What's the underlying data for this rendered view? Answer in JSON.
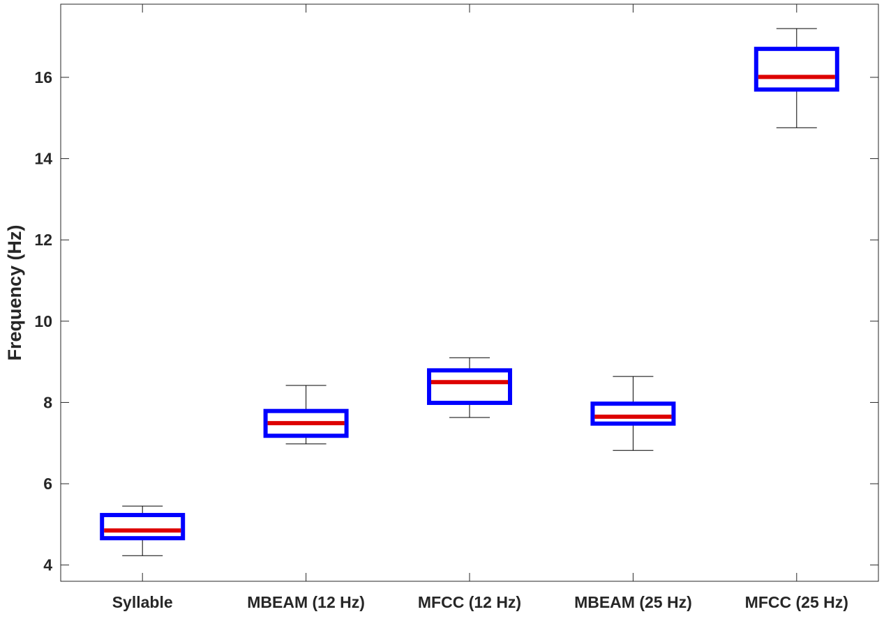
{
  "chart_data": {
    "type": "box",
    "title": "",
    "xlabel": "",
    "ylabel": "Frequency (Hz)",
    "ylim": [
      3.6,
      17.8
    ],
    "yticks": [
      4,
      6,
      8,
      10,
      12,
      14,
      16
    ],
    "grid": false,
    "categories": [
      "Syllable",
      "MBEAM (12 Hz)",
      "MFCC (12 Hz)",
      "MBEAM (25 Hz)",
      "MFCC (25 Hz)"
    ],
    "boxes": [
      {
        "category": "Syllable",
        "whisker_low": 4.23,
        "q1": 4.66,
        "median": 4.85,
        "q3": 5.23,
        "whisker_high": 5.45
      },
      {
        "category": "MBEAM (12 Hz)",
        "whisker_low": 6.98,
        "q1": 7.18,
        "median": 7.49,
        "q3": 7.79,
        "whisker_high": 8.42
      },
      {
        "category": "MFCC (12 Hz)",
        "whisker_low": 7.63,
        "q1": 7.99,
        "median": 8.5,
        "q3": 8.79,
        "whisker_high": 9.1
      },
      {
        "category": "MBEAM (25 Hz)",
        "whisker_low": 6.82,
        "q1": 7.48,
        "median": 7.65,
        "q3": 7.97,
        "whisker_high": 8.64
      },
      {
        "category": "MFCC (25 Hz)",
        "whisker_low": 14.76,
        "q1": 15.7,
        "median": 16.01,
        "q3": 16.7,
        "whisker_high": 17.2
      }
    ],
    "colors": {
      "box": "#0000ff",
      "median": "#dd0000",
      "whisker": "#000000",
      "axes": "#262626"
    }
  }
}
